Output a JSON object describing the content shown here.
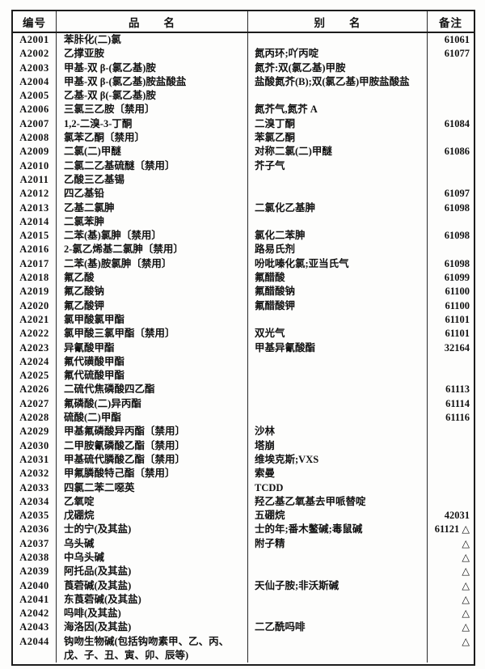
{
  "page": {
    "background": "#fdfdfc",
    "ink": "#121212",
    "triangle_symbol": "△"
  },
  "table": {
    "headers": [
      {
        "key": "code",
        "label": "编号"
      },
      {
        "key": "name",
        "label": "品　　名"
      },
      {
        "key": "alias",
        "label": "别　　名"
      },
      {
        "key": "remark",
        "label": "备注"
      }
    ],
    "rows": [
      {
        "code": "A2001",
        "name": "苯胩化(二)氯",
        "alias": "",
        "remark": "61061"
      },
      {
        "code": "A2002",
        "name": "乙撑亚胺",
        "alias": "氮丙环;吖丙啶",
        "remark": "61077"
      },
      {
        "code": "A2003",
        "name": "甲基-双 β-(氯乙基)胺",
        "alias": "氮芥:双(氯乙基)甲胺",
        "remark": ""
      },
      {
        "code": "A2004",
        "name": "甲基-双 β-(氯乙基)胺盐酸盐",
        "alias": "盐酸氮芥(B);双(氯乙基)甲胺盐酸盐",
        "remark": ""
      },
      {
        "code": "A2005",
        "name": "乙基-双 β(-氯乙基)胺",
        "alias": "",
        "remark": ""
      },
      {
        "code": "A2006",
        "name": "三氯三乙胺〔禁用〕",
        "alias": "氮芥气,氮芥 A",
        "remark": ""
      },
      {
        "code": "A2007",
        "name": "1,2-二溴-3-丁酮",
        "alias": "二溴丁酮",
        "remark": "61084"
      },
      {
        "code": "A2008",
        "name": "氯苯乙酮〔禁用〕",
        "alias": "苯氯乙酮",
        "remark": ""
      },
      {
        "code": "A2009",
        "name": "二氯(二)甲醚",
        "alias": "对称二氯(二)甲醚",
        "remark": "61086"
      },
      {
        "code": "A2010",
        "name": "二氯二乙基硫醚〔禁用〕",
        "alias": "芥子气",
        "remark": ""
      },
      {
        "code": "A2011",
        "name": "乙酸三乙基锡",
        "alias": "",
        "remark": ""
      },
      {
        "code": "A2012",
        "name": "四乙基铅",
        "alias": "",
        "remark": "61097"
      },
      {
        "code": "A2013",
        "name": "乙基二氯胂",
        "alias": "二氯化乙基胂",
        "remark": "61098"
      },
      {
        "code": "A2014",
        "name": "二氯苯胂",
        "alias": "",
        "remark": ""
      },
      {
        "code": "A2015",
        "name": "二苯(基)氯胂〔禁用〕",
        "alias": "氯化二苯胂",
        "remark": "61098"
      },
      {
        "code": "A2016",
        "name": "2-氯乙烯基二氯胂〔禁用〕",
        "alias": "路易氏剂",
        "remark": ""
      },
      {
        "code": "A2017",
        "name": "二苯(基)胺氯胂〔禁用〕",
        "alias": "吩吡嗪化氯;亚当氏气",
        "remark": "61098"
      },
      {
        "code": "A2018",
        "name": "氟乙酸",
        "alias": "氟醋酸",
        "remark": "61099"
      },
      {
        "code": "A2019",
        "name": "氟乙酸钠",
        "alias": "氟醋酸钠",
        "remark": "61100"
      },
      {
        "code": "A2020",
        "name": "氟乙酸钾",
        "alias": "氟醋酸钾",
        "remark": "61100"
      },
      {
        "code": "A2021",
        "name": "氯甲酸氯甲酯",
        "alias": "",
        "remark": "61101"
      },
      {
        "code": "A2022",
        "name": "氯甲酸三氯甲酯〔禁用〕",
        "alias": "双光气",
        "remark": "61101"
      },
      {
        "code": "A2023",
        "name": "异氰酸甲酯",
        "alias": "甲基异氰酸酯",
        "remark": "32164"
      },
      {
        "code": "A2024",
        "name": "氟代磺酸甲酯",
        "alias": "",
        "remark": ""
      },
      {
        "code": "A2025",
        "name": "氟代硫酸甲酯",
        "alias": "",
        "remark": ""
      },
      {
        "code": "A2026",
        "name": "二硫代焦磷酸四乙酯",
        "alias": "",
        "remark": "61113"
      },
      {
        "code": "A2027",
        "name": "氟磷酸(二)异丙酯",
        "alias": "",
        "remark": "61114"
      },
      {
        "code": "A2028",
        "name": "硫酸(二)甲酯",
        "alias": "",
        "remark": "61116"
      },
      {
        "code": "A2029",
        "name": "甲基氟磷酸异丙酯〔禁用〕",
        "alias": "沙林",
        "remark": ""
      },
      {
        "code": "A2030",
        "name": "二甲胺氰磷酸乙酯〔禁用〕",
        "alias": "塔崩",
        "remark": ""
      },
      {
        "code": "A2031",
        "name": "甲基硫代膦酸乙酯〔禁用〕",
        "alias": "维埃克斯;VXS",
        "remark": ""
      },
      {
        "code": "A2032",
        "name": "甲氟膦酸特己酯〔禁用〕",
        "alias": "索曼",
        "remark": ""
      },
      {
        "code": "A2033",
        "name": "四氯二苯二噁英",
        "alias": "TCDD",
        "remark": ""
      },
      {
        "code": "A2034",
        "name": "乙氧啶",
        "alias": "羟乙基乙氧基去甲哌替啶",
        "remark": ""
      },
      {
        "code": "A2035",
        "name": "戊硼烷",
        "alias": "五硼烷",
        "remark": "42031"
      },
      {
        "code": "A2036",
        "name": "士的宁(及其盐)",
        "alias": "士的年;番木鳖碱;毒鼠碱",
        "remark": "61121 △"
      },
      {
        "code": "A2037",
        "name": "乌头碱",
        "alias": "附子精",
        "remark": "△"
      },
      {
        "code": "A2038",
        "name": "中乌头碱",
        "alias": "",
        "remark": "△"
      },
      {
        "code": "A2039",
        "name": "阿托品(及其盐)",
        "alias": "",
        "remark": "△"
      },
      {
        "code": "A2040",
        "name": "莨菪碱(及其盐)",
        "alias": "天仙子胺;非沃斯碱",
        "remark": "△"
      },
      {
        "code": "A2041",
        "name": "东莨菪碱(及其盐)",
        "alias": "",
        "remark": "△"
      },
      {
        "code": "A2042",
        "name": "吗啡(及其盐)",
        "alias": "",
        "remark": "△"
      },
      {
        "code": "A2043",
        "name": "海洛因(及其盐)",
        "alias": "二乙酰吗啡",
        "remark": "△"
      },
      {
        "code": "A2044",
        "name": "钩吻生物碱(包括钩吻素甲、乙、丙、戊、子、丑、寅、卯、辰等)",
        "alias": "",
        "remark": "△"
      }
    ]
  }
}
